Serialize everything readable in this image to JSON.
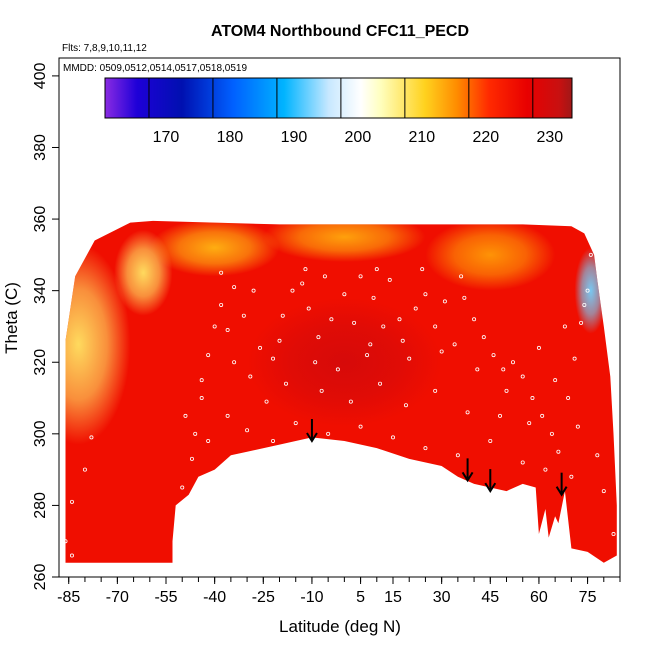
{
  "chart_data": {
    "type": "heatmap",
    "title": "ATOM4 Northbound CFC11_PECD",
    "annotations": [
      "Flts: 7,8,9,10,11,12",
      "MMDD: 0509,0512,0514,0517,0518,0519"
    ],
    "xlabel": "Latitude (deg N)",
    "ylabel": "Theta (C)",
    "xlim": [
      -88,
      85
    ],
    "ylim": [
      260,
      405
    ],
    "x_ticks": [
      -85,
      -70,
      -55,
      -40,
      -25,
      -10,
      5,
      15,
      30,
      45,
      60,
      75
    ],
    "x_tick_labels": [
      "-85",
      "-70",
      "-55",
      "-40",
      "-25",
      "-10",
      "5",
      "15",
      "30",
      "45",
      "60",
      "75"
    ],
    "y_ticks": [
      260,
      280,
      300,
      320,
      340,
      360,
      380,
      400
    ],
    "y_tick_labels": [
      "260",
      "280",
      "300",
      "320",
      "340",
      "360",
      "380",
      "400"
    ],
    "colorbar": {
      "min": 160,
      "max": 233,
      "ticks": [
        170,
        180,
        190,
        200,
        210,
        220,
        230
      ],
      "tick_labels": [
        "170",
        "180",
        "190",
        "200",
        "210",
        "220",
        "230"
      ],
      "stops": [
        {
          "value": 160,
          "color": "#8a2be2"
        },
        {
          "value": 165,
          "color": "#1e00d8"
        },
        {
          "value": 172,
          "color": "#0010b0"
        },
        {
          "value": 180,
          "color": "#0060ff"
        },
        {
          "value": 188,
          "color": "#00b4ff"
        },
        {
          "value": 195,
          "color": "#c8e8ff"
        },
        {
          "value": 200,
          "color": "#ffffff"
        },
        {
          "value": 203,
          "color": "#ffffc0"
        },
        {
          "value": 210,
          "color": "#ffd21e"
        },
        {
          "value": 215,
          "color": "#ff8c00"
        },
        {
          "value": 220,
          "color": "#ff2a00"
        },
        {
          "value": 226,
          "color": "#e80000"
        },
        {
          "value": 231,
          "color": "#c81010"
        },
        {
          "value": 233,
          "color": "#a01818"
        }
      ]
    },
    "domain_polygon": [
      [
        -86,
        264
      ],
      [
        -86,
        326
      ],
      [
        -83,
        344
      ],
      [
        -77,
        354
      ],
      [
        -66,
        359
      ],
      [
        -59,
        359.5
      ],
      [
        -40,
        359
      ],
      [
        -20,
        358.5
      ],
      [
        0,
        358.5
      ],
      [
        20,
        358.5
      ],
      [
        40,
        358.5
      ],
      [
        55,
        358.5
      ],
      [
        70,
        358
      ],
      [
        74,
        356
      ],
      [
        77,
        350
      ],
      [
        78,
        343
      ],
      [
        80,
        330
      ],
      [
        82,
        316
      ],
      [
        83,
        300
      ],
      [
        84,
        280
      ],
      [
        84,
        266
      ],
      [
        80,
        264
      ],
      [
        75,
        267
      ],
      [
        70,
        268
      ],
      [
        68,
        284
      ],
      [
        66,
        275
      ],
      [
        65,
        277
      ],
      [
        63,
        271
      ],
      [
        62,
        279
      ],
      [
        60,
        272
      ],
      [
        59,
        285
      ],
      [
        55,
        286
      ],
      [
        50,
        284
      ],
      [
        45,
        285
      ],
      [
        40,
        286
      ],
      [
        35,
        288
      ],
      [
        30,
        291
      ],
      [
        20,
        293
      ],
      [
        10,
        296
      ],
      [
        0,
        298
      ],
      [
        -10,
        299
      ],
      [
        -20,
        297
      ],
      [
        -30,
        295
      ],
      [
        -35,
        294
      ],
      [
        -40,
        290
      ],
      [
        -45,
        288
      ],
      [
        -48,
        283
      ],
      [
        -52,
        280
      ],
      [
        -53,
        270
      ],
      [
        -53,
        264
      ]
    ],
    "field_blobs": [
      {
        "lat": -82,
        "theta": 325,
        "value": 207,
        "radius_lat": 16,
        "radius_theta": 28
      },
      {
        "lat": -62,
        "theta": 345,
        "value": 207,
        "radius_lat": 9,
        "radius_theta": 12
      },
      {
        "lat": -40,
        "theta": 352,
        "value": 212,
        "radius_lat": 20,
        "radius_theta": 8
      },
      {
        "lat": 0,
        "theta": 355,
        "value": 213,
        "radius_lat": 25,
        "radius_theta": 7
      },
      {
        "lat": 45,
        "theta": 350,
        "value": 214,
        "radius_lat": 20,
        "radius_theta": 10
      },
      {
        "lat": 76,
        "theta": 340,
        "value": 192,
        "radius_lat": 5,
        "radius_theta": 12
      },
      {
        "lat": 0,
        "theta": 320,
        "value": 229,
        "radius_lat": 30,
        "radius_theta": 18
      }
    ],
    "arrows_lat": [
      -10,
      38,
      45,
      67
    ],
    "arrows_theta_tip": [
      298,
      287,
      284,
      283
    ],
    "sample_points": [
      [
        -49,
        305
      ],
      [
        -46,
        300
      ],
      [
        -44,
        310
      ],
      [
        -42,
        322
      ],
      [
        -40,
        330
      ],
      [
        -38,
        336
      ],
      [
        -36,
        329
      ],
      [
        -34,
        341
      ],
      [
        -31,
        333
      ],
      [
        -28,
        340
      ],
      [
        -26,
        324
      ],
      [
        -24,
        309
      ],
      [
        -22,
        321
      ],
      [
        -19,
        333
      ],
      [
        -16,
        340
      ],
      [
        -13,
        342
      ],
      [
        -11,
        335
      ],
      [
        -8,
        327
      ],
      [
        -6,
        344
      ],
      [
        -4,
        332
      ],
      [
        -2,
        318
      ],
      [
        0,
        339
      ],
      [
        3,
        331
      ],
      [
        5,
        344
      ],
      [
        7,
        322
      ],
      [
        9,
        338
      ],
      [
        12,
        330
      ],
      [
        14,
        343
      ],
      [
        17,
        332
      ],
      [
        20,
        321
      ],
      [
        22,
        335
      ],
      [
        25,
        339
      ],
      [
        28,
        330
      ],
      [
        31,
        337
      ],
      [
        34,
        325
      ],
      [
        37,
        338
      ],
      [
        40,
        332
      ],
      [
        43,
        327
      ],
      [
        46,
        322
      ],
      [
        49,
        318
      ],
      [
        52,
        320
      ],
      [
        55,
        316
      ],
      [
        58,
        310
      ],
      [
        61,
        305
      ],
      [
        64,
        300
      ],
      [
        66,
        295
      ],
      [
        69,
        310
      ],
      [
        71,
        321
      ],
      [
        73,
        331
      ],
      [
        75,
        340
      ],
      [
        76,
        350
      ],
      [
        77,
        355
      ],
      [
        -47,
        293
      ],
      [
        -42,
        298
      ],
      [
        -36,
        305
      ],
      [
        -30,
        301
      ],
      [
        -22,
        298
      ],
      [
        -15,
        303
      ],
      [
        -5,
        300
      ],
      [
        5,
        302
      ],
      [
        15,
        299
      ],
      [
        25,
        296
      ],
      [
        35,
        294
      ],
      [
        45,
        298
      ],
      [
        55,
        292
      ],
      [
        62,
        290
      ],
      [
        70,
        288
      ],
      [
        -78,
        299
      ],
      [
        -80,
        290
      ],
      [
        -84,
        281
      ],
      [
        -86,
        270
      ],
      [
        -84,
        266
      ],
      [
        -50,
        285
      ],
      [
        -44,
        315
      ],
      [
        -29,
        316
      ],
      [
        -18,
        314
      ],
      [
        -7,
        312
      ],
      [
        2,
        309
      ],
      [
        11,
        314
      ],
      [
        19,
        308
      ],
      [
        28,
        312
      ],
      [
        38,
        306
      ],
      [
        48,
        305
      ],
      [
        57,
        303
      ],
      [
        65,
        315
      ],
      [
        72,
        302
      ],
      [
        78,
        294
      ],
      [
        80,
        284
      ],
      [
        83,
        272
      ],
      [
        -34,
        320
      ],
      [
        -20,
        326
      ],
      [
        -9,
        320
      ],
      [
        8,
        325
      ],
      [
        18,
        326
      ],
      [
        30,
        323
      ],
      [
        41,
        318
      ],
      [
        50,
        312
      ],
      [
        60,
        324
      ],
      [
        68,
        330
      ],
      [
        74,
        336
      ],
      [
        -38,
        345
      ],
      [
        -12,
        346
      ],
      [
        10,
        346
      ],
      [
        24,
        346
      ],
      [
        36,
        344
      ]
    ]
  }
}
